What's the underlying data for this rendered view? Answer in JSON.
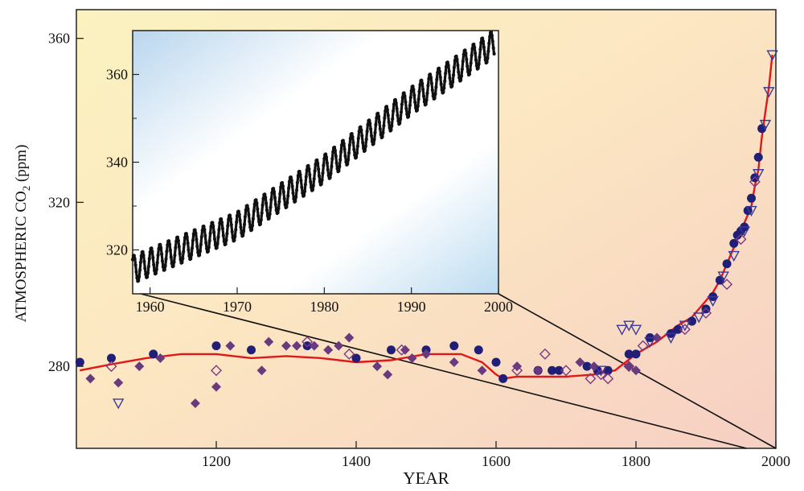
{
  "chart_data": [
    {
      "type": "scatter",
      "xlabel": "YEAR",
      "ylabel_main": "ATMOSPHERIC CO",
      "ylabel_sub": "2",
      "ylabel_unit": " (ppm)",
      "xlim": [
        1000,
        2000
      ],
      "ylim": [
        260,
        367
      ],
      "xticks": [
        1200,
        1400,
        1600,
        1800,
        2000
      ],
      "yticks": [
        280,
        320,
        360
      ],
      "grid": false,
      "colors": {
        "filled_circle": "#1f1f78",
        "filled_diamond": "#6a3a7e",
        "open_diamond": "#7a3c84",
        "open_triangle": "#3a3a9a",
        "fit_line": "#e01818"
      },
      "series": [
        {
          "marker": "filled_circle",
          "points": [
            [
              1005,
              281
            ],
            [
              1050,
              282
            ],
            [
              1110,
              283
            ],
            [
              1200,
              285
            ],
            [
              1250,
              284
            ],
            [
              1330,
              285
            ],
            [
              1400,
              282
            ],
            [
              1450,
              284
            ],
            [
              1500,
              284
            ],
            [
              1540,
              285
            ],
            [
              1575,
              284
            ],
            [
              1600,
              281
            ],
            [
              1610,
              277
            ],
            [
              1660,
              279
            ],
            [
              1680,
              279
            ],
            [
              1690,
              279
            ],
            [
              1730,
              280
            ],
            [
              1745,
              279
            ],
            [
              1760,
              279
            ],
            [
              1790,
              283
            ],
            [
              1800,
              283
            ],
            [
              1820,
              287
            ],
            [
              1850,
              288
            ],
            [
              1860,
              289
            ],
            [
              1880,
              291
            ],
            [
              1900,
              294
            ],
            [
              1910,
              297
            ],
            [
              1920,
              301
            ],
            [
              1930,
              305
            ],
            [
              1940,
              310
            ],
            [
              1945,
              312
            ],
            [
              1950,
              313
            ],
            [
              1955,
              314
            ],
            [
              1960,
              318
            ],
            [
              1965,
              321
            ],
            [
              1970,
              326
            ],
            [
              1975,
              331
            ],
            [
              1980,
              338
            ]
          ]
        },
        {
          "marker": "filled_diamond",
          "points": [
            [
              1020,
              277
            ],
            [
              1060,
              276
            ],
            [
              1090,
              280
            ],
            [
              1120,
              282
            ],
            [
              1170,
              271
            ],
            [
              1200,
              275
            ],
            [
              1220,
              285
            ],
            [
              1265,
              279
            ],
            [
              1275,
              286
            ],
            [
              1300,
              285
            ],
            [
              1315,
              285
            ],
            [
              1340,
              285
            ],
            [
              1360,
              284
            ],
            [
              1375,
              285
            ],
            [
              1390,
              287
            ],
            [
              1430,
              280
            ],
            [
              1445,
              278
            ],
            [
              1470,
              284
            ],
            [
              1480,
              282
            ],
            [
              1500,
              283
            ],
            [
              1540,
              281
            ],
            [
              1580,
              279
            ],
            [
              1630,
              280
            ],
            [
              1660,
              279
            ],
            [
              1720,
              281
            ],
            [
              1740,
              280
            ],
            [
              1790,
              280
            ],
            [
              1800,
              279
            ],
            [
              1830,
              287
            ]
          ]
        },
        {
          "marker": "open_diamond",
          "points": [
            [
              1050,
              280
            ],
            [
              1200,
              279
            ],
            [
              1330,
              286
            ],
            [
              1390,
              283
            ],
            [
              1465,
              284
            ],
            [
              1630,
              279
            ],
            [
              1670,
              283
            ],
            [
              1700,
              279
            ],
            [
              1735,
              277
            ],
            [
              1750,
              278
            ],
            [
              1760,
              277
            ],
            [
              1790,
              280
            ],
            [
              1810,
              285
            ],
            [
              1870,
              289
            ],
            [
              1900,
              293
            ],
            [
              1930,
              300
            ],
            [
              1950,
              311
            ],
            [
              1970,
              325
            ]
          ]
        },
        {
          "marker": "open_triangle",
          "points": [
            [
              1060,
              271
            ],
            [
              1750,
              279
            ],
            [
              1780,
              289
            ],
            [
              1790,
              290
            ],
            [
              1800,
              289
            ],
            [
              1820,
              286
            ],
            [
              1850,
              287
            ],
            [
              1870,
              290
            ],
            [
              1890,
              292
            ],
            [
              1910,
              296
            ],
            [
              1925,
              302
            ],
            [
              1940,
              307
            ],
            [
              1955,
              313
            ],
            [
              1965,
              318
            ],
            [
              1975,
              327
            ],
            [
              1985,
              339
            ],
            [
              1990,
              347
            ],
            [
              1995,
              356
            ]
          ]
        }
      ],
      "fit_line": {
        "x": [
          1005,
          1050,
          1100,
          1150,
          1200,
          1250,
          1300,
          1350,
          1400,
          1450,
          1500,
          1550,
          1580,
          1600,
          1610,
          1630,
          1670,
          1700,
          1740,
          1770,
          1800,
          1830,
          1860,
          1880,
          1900,
          1910,
          1920,
          1930,
          1940,
          1950,
          1960,
          1965,
          1970,
          1975,
          1980,
          1985,
          1990,
          1995
        ],
        "y": [
          279,
          280.5,
          282,
          283,
          283,
          282,
          282.5,
          282,
          281,
          281.5,
          283,
          283,
          281,
          278,
          277,
          277.5,
          277.5,
          277.5,
          278,
          279,
          283,
          286,
          290,
          292,
          296,
          298,
          301,
          305,
          309,
          313,
          317,
          319,
          324,
          328,
          336,
          342,
          348,
          356
        ]
      },
      "zoom_range": {
        "x_from": 1958,
        "x_to": 2000
      }
    },
    {
      "type": "line",
      "xlim": [
        1958,
        2000
      ],
      "ylim": [
        310,
        370
      ],
      "xticks": [
        1960,
        1970,
        1980,
        1990,
        2000
      ],
      "yticks": [
        320,
        340,
        360
      ],
      "grid": false,
      "colors": {
        "line": "#111111"
      },
      "series": [
        {
          "name": "",
          "trend": {
            "x": [
              1958,
              1970,
              1980,
              1990,
              1999.5
            ],
            "y": [
              315.5,
              325.5,
              338.5,
              354,
              367
            ]
          },
          "seasonal_amplitude_ppm": 3.2
        }
      ]
    }
  ]
}
